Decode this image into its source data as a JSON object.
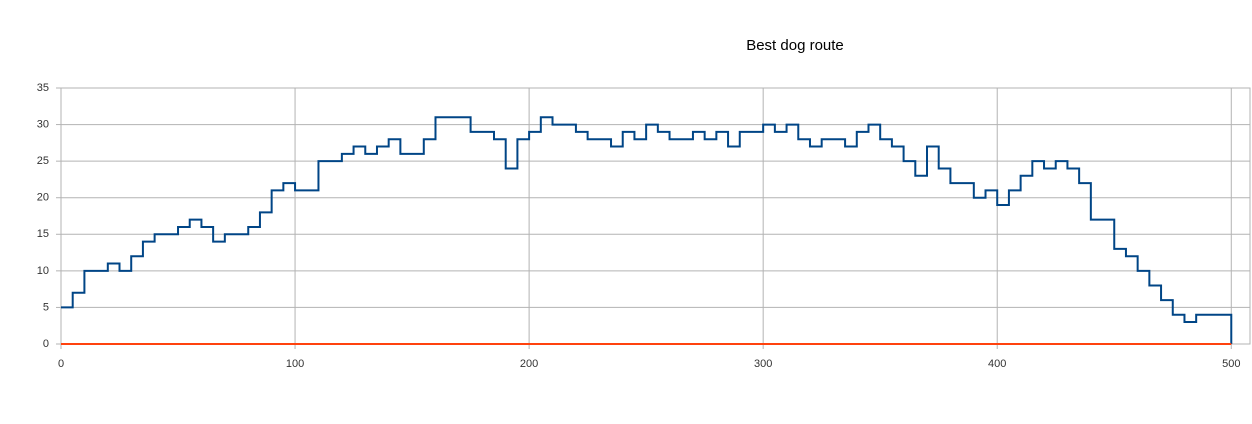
{
  "chart_data": {
    "type": "step",
    "title": "Best dog route",
    "x": [
      0,
      5,
      10,
      15,
      20,
      25,
      30,
      35,
      40,
      45,
      50,
      55,
      60,
      65,
      70,
      75,
      80,
      85,
      90,
      95,
      100,
      105,
      110,
      115,
      120,
      125,
      130,
      135,
      140,
      145,
      150,
      155,
      160,
      165,
      170,
      175,
      180,
      185,
      190,
      195,
      200,
      205,
      210,
      215,
      220,
      225,
      230,
      235,
      240,
      245,
      250,
      255,
      260,
      265,
      270,
      275,
      280,
      285,
      290,
      295,
      300,
      305,
      310,
      315,
      320,
      325,
      330,
      335,
      340,
      345,
      350,
      355,
      360,
      365,
      370,
      375,
      380,
      385,
      390,
      395,
      400,
      405,
      410,
      415,
      420,
      425,
      430,
      435,
      440,
      445,
      450,
      455,
      460,
      465,
      470,
      475,
      480,
      485,
      490,
      495,
      500
    ],
    "series": [
      {
        "color": "#004586",
        "values": [
          5,
          7,
          10,
          10,
          11,
          10,
          12,
          14,
          15,
          15,
          16,
          17,
          16,
          14,
          15,
          15,
          16,
          18,
          21,
          22,
          21,
          21,
          25,
          25,
          26,
          27,
          26,
          27,
          28,
          26,
          26,
          28,
          31,
          31,
          31,
          29,
          29,
          28,
          24,
          28,
          29,
          31,
          30,
          30,
          29,
          28,
          28,
          27,
          29,
          28,
          30,
          29,
          28,
          28,
          29,
          28,
          29,
          27,
          29,
          29,
          30,
          29,
          30,
          28,
          27,
          28,
          28,
          27,
          29,
          30,
          28,
          27,
          25,
          23,
          27,
          24,
          22,
          22,
          20,
          21,
          19,
          21,
          23,
          25,
          24,
          25,
          24,
          22,
          17,
          17,
          13,
          12,
          10,
          8,
          6,
          4,
          3,
          4,
          4,
          4,
          0
        ]
      },
      {
        "color": "#ff420e",
        "values": [
          0,
          0,
          0,
          0,
          0,
          0,
          0,
          0,
          0,
          0,
          0,
          0,
          0,
          0,
          0,
          0,
          0,
          0,
          0,
          0,
          0,
          0,
          0,
          0,
          0,
          0,
          0,
          0,
          0,
          0,
          0,
          0,
          0,
          0,
          0,
          0,
          0,
          0,
          0,
          0,
          0,
          0,
          0,
          0,
          0,
          0,
          0,
          0,
          0,
          0,
          0,
          0,
          0,
          0,
          0,
          0,
          0,
          0,
          0,
          0,
          0,
          0,
          0,
          0,
          0,
          0,
          0,
          0,
          0,
          0,
          0,
          0,
          0,
          0,
          0,
          0,
          0,
          0,
          0,
          0,
          0,
          0,
          0,
          0,
          0,
          0,
          0,
          0,
          0,
          0,
          0,
          0,
          0,
          0,
          0,
          0,
          0,
          0,
          0,
          0,
          0
        ]
      }
    ],
    "xlim": [
      0,
      508
    ],
    "xticks": [
      0,
      100,
      200,
      300,
      400,
      500
    ],
    "ylim": [
      0,
      35
    ],
    "yticks": [
      0,
      5,
      10,
      15,
      20,
      25,
      30,
      35
    ],
    "grid": true
  }
}
